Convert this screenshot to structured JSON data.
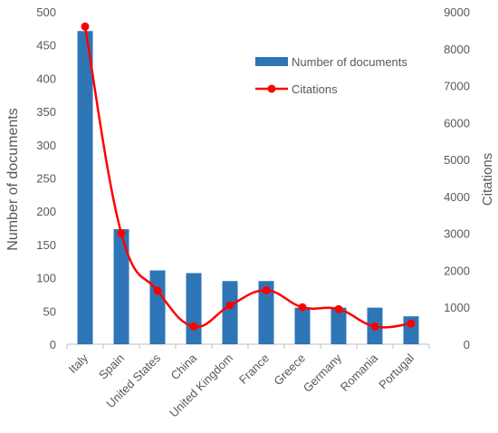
{
  "chart_data": {
    "type": "bar",
    "categories": [
      "Italy",
      "Spain",
      "United States",
      "China",
      "United Kingdom",
      "France",
      "Greece",
      "Germany",
      "Romania",
      "Portugal"
    ],
    "series": [
      {
        "name": "Number of documents",
        "type": "bar",
        "axis": "left",
        "values": [
          471,
          173,
          111,
          107,
          95,
          95,
          55,
          55,
          55,
          42
        ],
        "color": "#2e75b6"
      },
      {
        "name": "Citations",
        "type": "line",
        "axis": "right",
        "values": [
          8600,
          3000,
          1450,
          480,
          1050,
          1460,
          1000,
          950,
          480,
          560
        ],
        "color": "#ff0000"
      }
    ],
    "ylabel": "Number of documents",
    "y2label": "Citations",
    "ylim": [
      0,
      500
    ],
    "y2lim": [
      0,
      9000
    ],
    "yticks": [
      "0",
      "50",
      "100",
      "150",
      "200",
      "250",
      "300",
      "350",
      "400",
      "450",
      "500"
    ],
    "y2ticks": [
      "0",
      "1000",
      "2000",
      "3000",
      "4000",
      "5000",
      "6000",
      "7000",
      "8000",
      "9000"
    ],
    "grid": false,
    "legend": "top-right"
  }
}
